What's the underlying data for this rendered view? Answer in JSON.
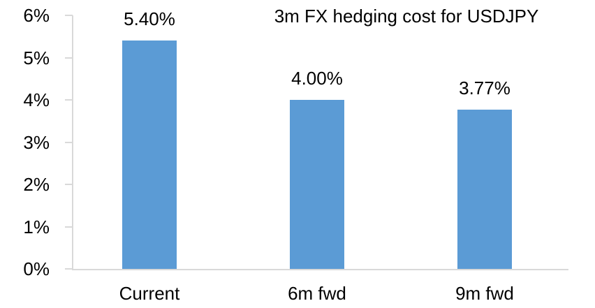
{
  "chart_data": {
    "type": "bar",
    "title": "3m FX hedging cost for USDJPY",
    "categories": [
      "Current",
      "6m fwd",
      "9m fwd"
    ],
    "values": [
      5.4,
      4.0,
      3.77
    ],
    "data_labels": [
      "5.40%",
      "4.00%",
      "3.77%"
    ],
    "y_ticks": [
      "0%",
      "1%",
      "2%",
      "3%",
      "4%",
      "5%",
      "6%"
    ],
    "ylim": [
      0,
      6
    ],
    "xlabel": "",
    "ylabel": "",
    "grid": false,
    "legend_position": "none",
    "bar_color": "#5B9BD5",
    "axis_color": "#D9D9D9",
    "text_color": "#000000"
  }
}
